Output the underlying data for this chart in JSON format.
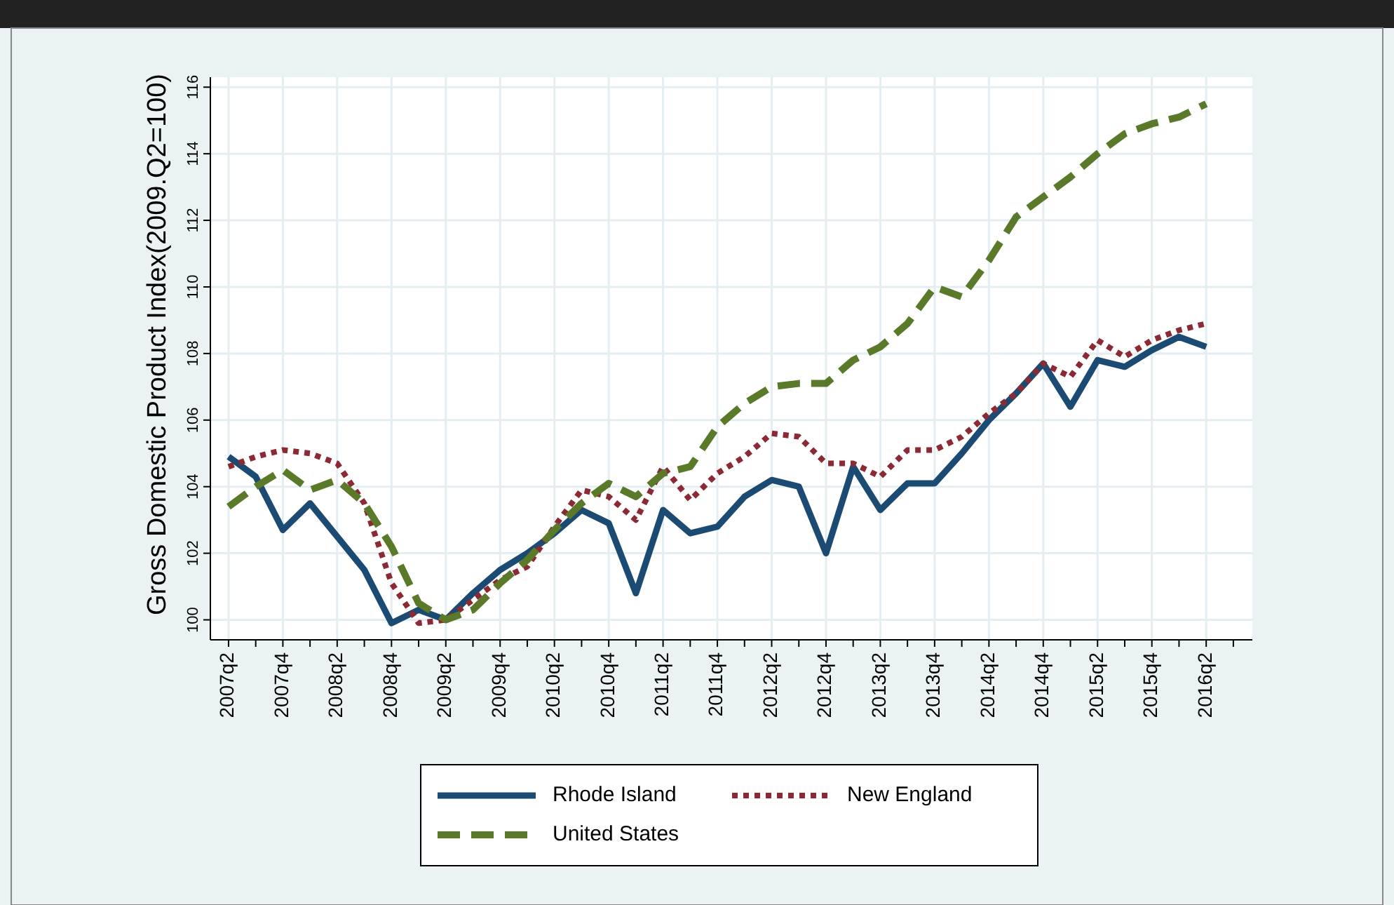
{
  "chart_data": {
    "type": "line",
    "ylabel": "Gross Domestic Product Index(2009.Q2=100)",
    "categories": [
      "2007q2",
      null,
      "2007q4",
      null,
      "2008q2",
      null,
      "2008q4",
      null,
      "2009q2",
      null,
      "2009q4",
      null,
      "2010q2",
      null,
      "2010q4",
      null,
      "2011q2",
      null,
      "2011q4",
      null,
      "2012q2",
      null,
      "2012q4",
      null,
      "2013q2",
      null,
      "2013q4",
      null,
      "2014q2",
      null,
      "2014q4",
      null,
      "2015q2",
      null,
      "2015q4",
      null,
      "2016q2"
    ],
    "ylim": [
      99.4,
      116.3
    ],
    "yticks": [
      100,
      102,
      104,
      106,
      108,
      110,
      112,
      114,
      116
    ],
    "grid": true,
    "legend": "bottom",
    "series": [
      {
        "name": "Rhode Island",
        "color": "#1b4a72",
        "line_style": "solid",
        "values": [
          104.9,
          104.3,
          102.7,
          103.5,
          102.5,
          101.5,
          99.9,
          100.3,
          100.0,
          100.8,
          101.5,
          102.0,
          102.6,
          103.3,
          102.9,
          100.8,
          103.3,
          102.6,
          102.8,
          103.7,
          104.2,
          104.0,
          102.0,
          104.6,
          103.3,
          104.1,
          104.1,
          105.0,
          106.0,
          106.8,
          107.7,
          106.4,
          107.8,
          107.6,
          108.1,
          108.5,
          108.2
        ]
      },
      {
        "name": "New England",
        "color": "#8b2a35",
        "line_style": "dotted",
        "values": [
          104.6,
          104.9,
          105.1,
          105.0,
          104.7,
          103.5,
          101.1,
          99.9,
          100.0,
          100.6,
          101.2,
          101.6,
          102.8,
          103.9,
          103.7,
          103.0,
          104.6,
          103.6,
          104.4,
          104.9,
          105.6,
          105.5,
          104.7,
          104.7,
          104.3,
          105.1,
          105.1,
          105.5,
          106.2,
          106.8,
          107.7,
          107.3,
          108.4,
          107.9,
          108.4,
          108.7,
          108.9
        ]
      },
      {
        "name": "United States",
        "color": "#5a7a2a",
        "line_style": "dashed",
        "values": [
          103.4,
          104.0,
          104.5,
          103.9,
          104.2,
          103.5,
          102.2,
          100.5,
          100.0,
          100.3,
          101.1,
          101.8,
          102.7,
          103.5,
          104.1,
          103.7,
          104.4,
          104.6,
          105.8,
          106.5,
          107.0,
          107.1,
          107.1,
          107.8,
          108.2,
          108.9,
          110.0,
          109.7,
          110.8,
          112.1,
          112.7,
          113.3,
          114.0,
          114.6,
          114.9,
          115.1,
          115.5
        ]
      }
    ]
  }
}
